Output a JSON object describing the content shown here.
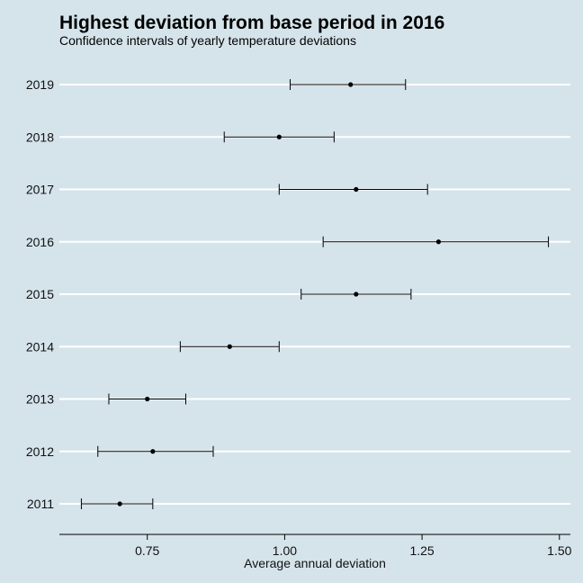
{
  "chart_data": {
    "type": "errorbar",
    "title": "Highest deviation from base period in 2016",
    "subtitle": "Confidence intervals of yearly temperature deviations",
    "xlabel": "Average annual deviation",
    "ylabel": "",
    "xlim": [
      0.59,
      1.52
    ],
    "x_ticks": [
      0.75,
      1.0,
      1.25,
      1.5
    ],
    "x_tick_labels": [
      "0.75",
      "1.00",
      "1.25",
      "1.50"
    ],
    "grid": "horizontal",
    "categories": [
      "2011",
      "2012",
      "2013",
      "2014",
      "2015",
      "2016",
      "2017",
      "2018",
      "2019"
    ],
    "mean": [
      0.7,
      0.76,
      0.75,
      0.9,
      1.13,
      1.28,
      1.13,
      0.99,
      1.12
    ],
    "lower": [
      0.63,
      0.66,
      0.68,
      0.81,
      1.03,
      1.07,
      0.99,
      0.89,
      1.01
    ],
    "upper": [
      0.76,
      0.87,
      0.82,
      0.99,
      1.23,
      1.48,
      1.26,
      1.09,
      1.22
    ]
  }
}
